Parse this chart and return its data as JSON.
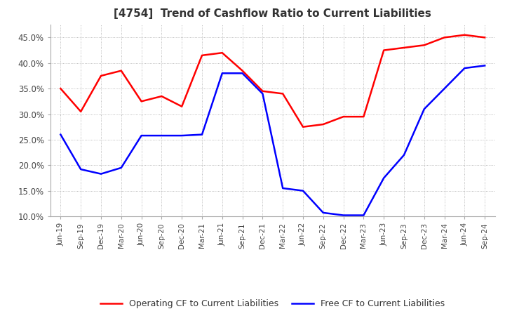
{
  "title": "[4754]  Trend of Cashflow Ratio to Current Liabilities",
  "title_fontsize": 11,
  "x_labels": [
    "Jun-19",
    "Sep-19",
    "Dec-19",
    "Mar-20",
    "Jun-20",
    "Sep-20",
    "Dec-20",
    "Mar-21",
    "Jun-21",
    "Sep-21",
    "Dec-21",
    "Mar-22",
    "Jun-22",
    "Sep-22",
    "Dec-22",
    "Mar-23",
    "Jun-23",
    "Sep-23",
    "Dec-23",
    "Mar-24",
    "Jun-24",
    "Sep-24"
  ],
  "operating_cf": [
    0.35,
    0.305,
    0.375,
    0.385,
    0.325,
    0.335,
    0.315,
    0.415,
    0.42,
    0.385,
    0.345,
    0.34,
    0.275,
    0.28,
    0.295,
    0.295,
    0.425,
    0.43,
    0.435,
    0.45,
    0.455,
    0.45
  ],
  "free_cf": [
    0.26,
    0.192,
    0.183,
    0.195,
    0.258,
    0.258,
    0.258,
    0.26,
    0.38,
    0.38,
    0.34,
    0.155,
    0.15,
    0.107,
    0.102,
    0.102,
    0.175,
    0.22,
    0.31,
    0.35,
    0.39,
    0.395
  ],
  "operating_color": "#FF0000",
  "free_color": "#0000FF",
  "ylim_min": 0.1,
  "ylim_max": 0.475,
  "y_ticks": [
    0.1,
    0.15,
    0.2,
    0.25,
    0.3,
    0.35,
    0.4,
    0.45
  ],
  "legend_operating": "Operating CF to Current Liabilities",
  "legend_free": "Free CF to Current Liabilities",
  "background_color": "#ffffff",
  "grid_color": "#aaaaaa"
}
